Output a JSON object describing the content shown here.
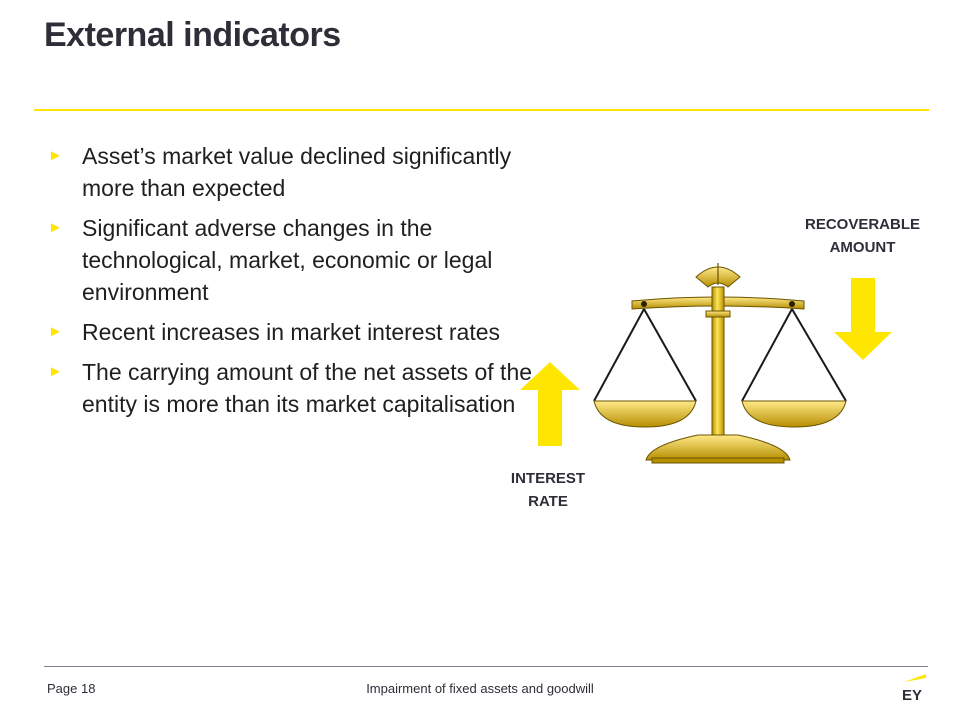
{
  "slide": {
    "title": "External indicators",
    "bullets": [
      "Asset’s market value declined significantly more than expected",
      "Significant adverse changes in the technological, market, economic or legal environment",
      "Recent increases in market interest rates",
      "The carrying amount of the net assets of the entity is more than its market capitalisation"
    ],
    "bullet_marker": "►"
  },
  "diagram": {
    "recoverable_label": [
      "RECOVERABLE",
      "AMOUNT"
    ],
    "interest_label": [
      "INTEREST",
      "RATE"
    ],
    "arrow_color": "#ffe600",
    "scale_color": "#e6c300",
    "scale_icon": "balance-scale-icon",
    "up_arrow_icon": "arrow-up-icon",
    "down_arrow_icon": "arrow-down-icon"
  },
  "footer": {
    "page": "Page 18",
    "title": "Impairment of fixed assets and goodwill",
    "logo_text": "EY"
  },
  "colors": {
    "accent": "#ffe600",
    "text": "#2e2e38"
  }
}
